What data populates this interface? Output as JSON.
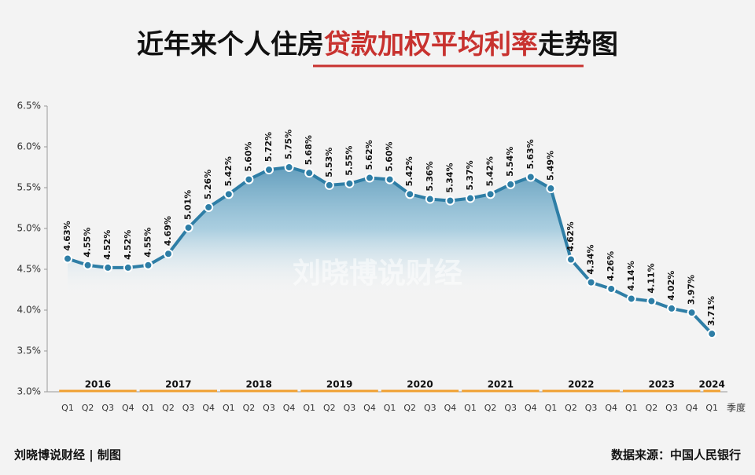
{
  "chart_data": {
    "type": "line",
    "title": [
      "近年来个人住房",
      "贷款加权平均利率",
      "走势图"
    ],
    "watermark": "刘晓博说财经",
    "x_label": "季度",
    "categories": [
      "Q1",
      "Q2",
      "Q3",
      "Q4",
      "Q1",
      "Q2",
      "Q3",
      "Q4",
      "Q1",
      "Q2",
      "Q3",
      "Q4",
      "Q1",
      "Q2",
      "Q3",
      "Q4",
      "Q1",
      "Q2",
      "Q3",
      "Q4",
      "Q1",
      "Q2",
      "Q3",
      "Q4",
      "Q1",
      "Q2",
      "Q3",
      "Q4",
      "Q1",
      "Q2",
      "Q3",
      "Q4",
      "Q1"
    ],
    "years": [
      "2016",
      "2017",
      "2018",
      "2019",
      "2020",
      "2021",
      "2022",
      "2023",
      "2024"
    ],
    "values": [
      4.63,
      4.55,
      4.52,
      4.52,
      4.55,
      4.69,
      5.01,
      5.26,
      5.42,
      5.6,
      5.72,
      5.75,
      5.68,
      5.53,
      5.55,
      5.62,
      5.6,
      5.42,
      5.36,
      5.34,
      5.37,
      5.42,
      5.54,
      5.63,
      5.49,
      4.62,
      4.34,
      4.26,
      4.14,
      4.11,
      4.02,
      3.97,
      3.71
    ],
    "value_labels": [
      "4.63%",
      "4.55%",
      "4.52%",
      "4.52%",
      "4.55%",
      "4.69%",
      "5.01%",
      "5.26%",
      "5.42%",
      "5.60%",
      "5.72%",
      "5.75%",
      "5.68%",
      "5.53%",
      "5.55%",
      "5.62%",
      "5.60%",
      "5.42%",
      "5.36%",
      "5.34%",
      "5.37%",
      "5.42%",
      "5.54%",
      "5.63%",
      "5.49%",
      "4.62%",
      "4.34%",
      "4.26%",
      "4.14%",
      "4.11%",
      "4.02%",
      "3.97%",
      "3.71%"
    ],
    "color": "#2e7ea6",
    "ylim": [
      3.0,
      6.5
    ],
    "yticks": [
      {
        "value": 3.0,
        "label": "3.0%"
      },
      {
        "value": 3.5,
        "label": "3.5%"
      },
      {
        "value": 4.0,
        "label": "4.0%"
      },
      {
        "value": 4.5,
        "label": "4.5%"
      },
      {
        "value": 5.0,
        "label": "5.0%"
      },
      {
        "value": 5.5,
        "label": "5.5%"
      },
      {
        "value": 6.0,
        "label": "6.0%"
      },
      {
        "value": 6.5,
        "label": "6.5%"
      }
    ],
    "footer_left": "刘晓博说财经 | 制图",
    "footer_right": "数据来源：中国人民银行"
  }
}
